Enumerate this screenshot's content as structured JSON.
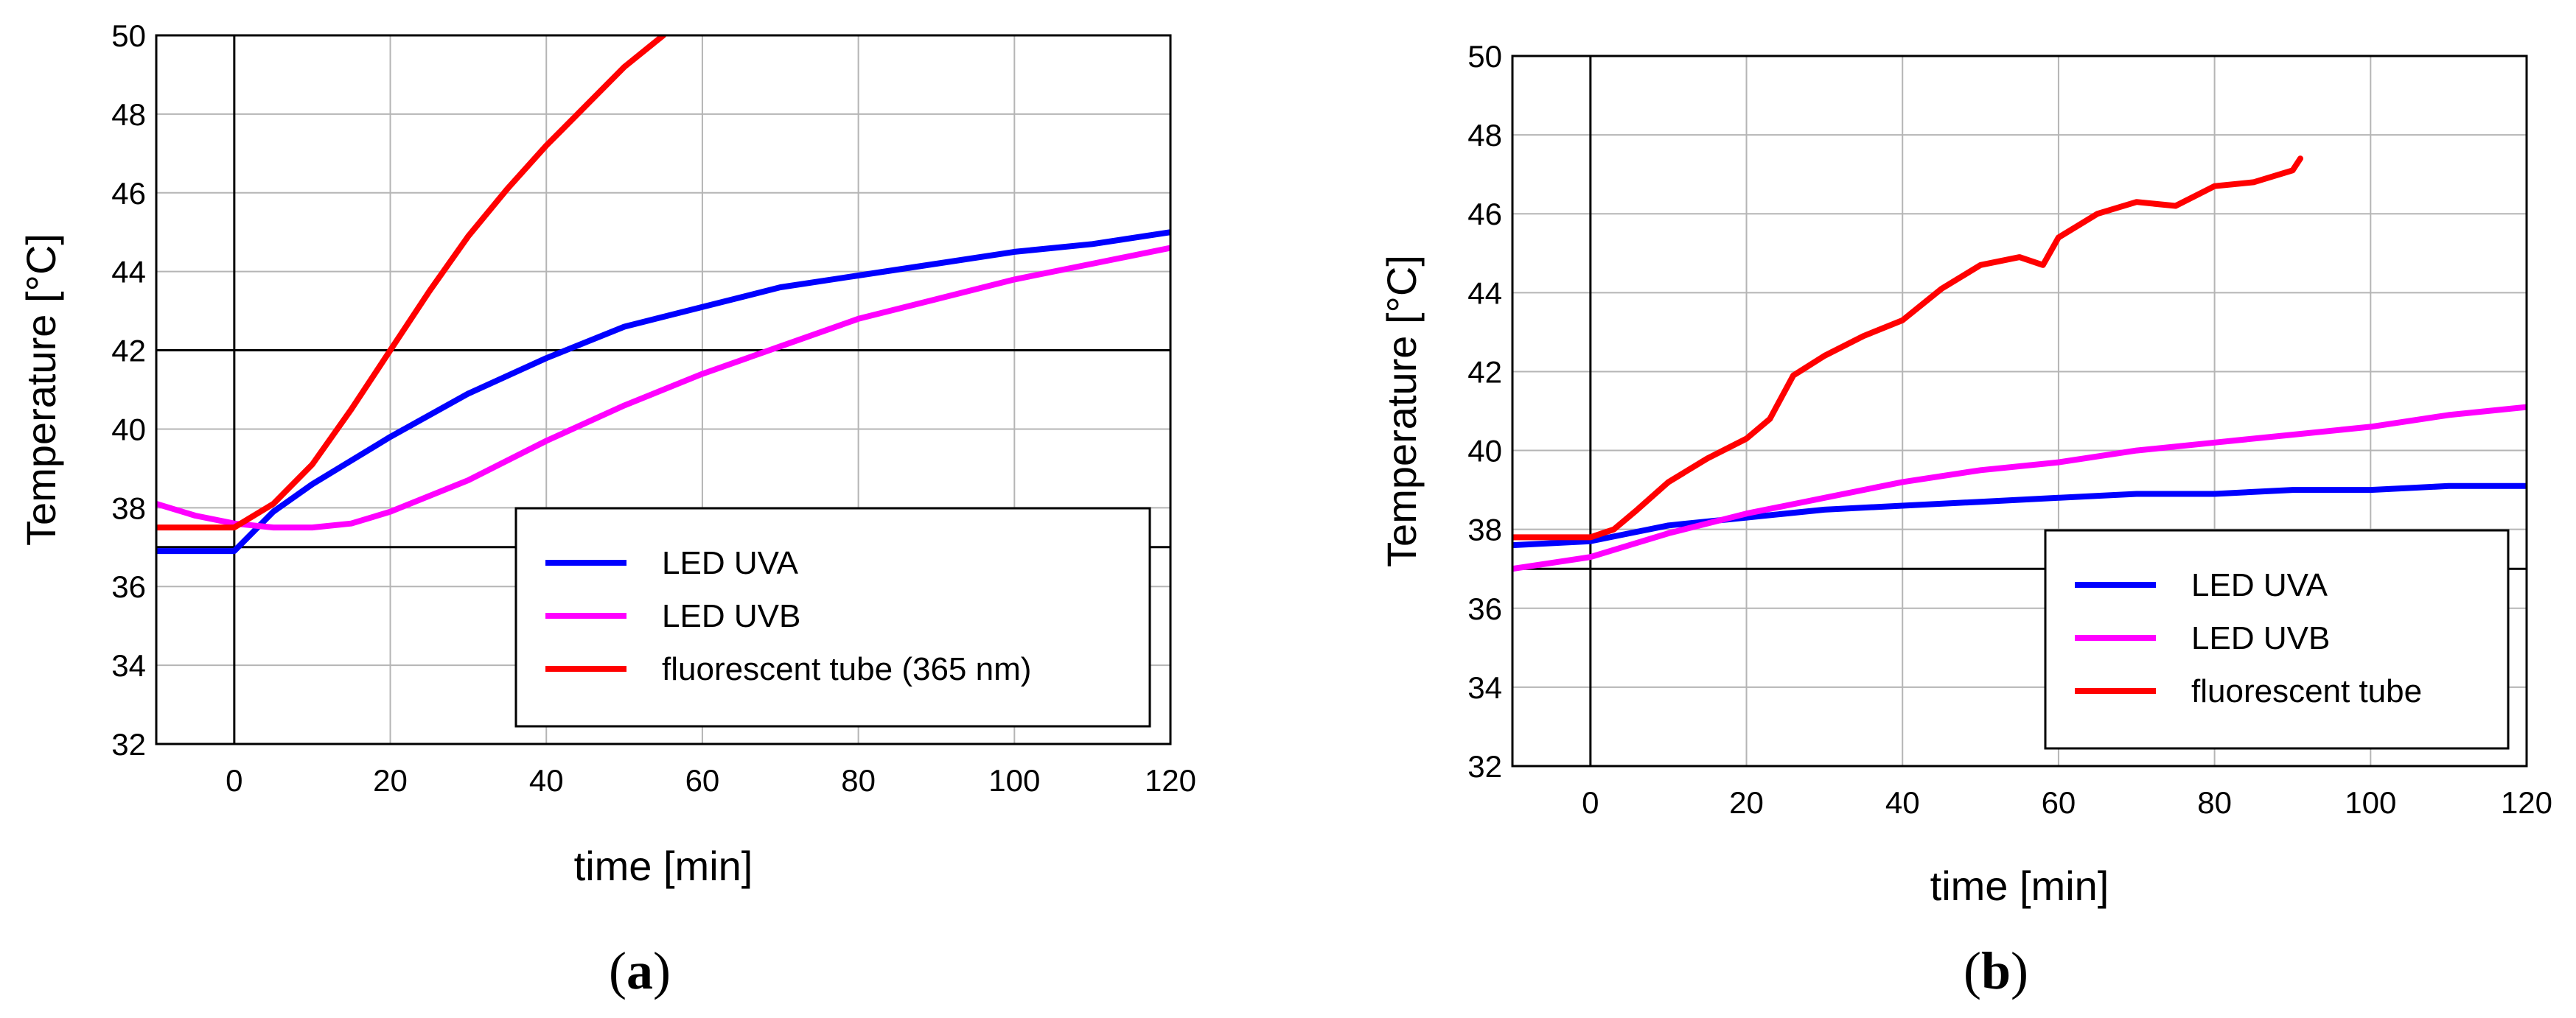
{
  "chart_data": [
    {
      "type": "line",
      "panel_label": "a",
      "xlabel": "time [min]",
      "ylabel": "Temperature [°C]",
      "xlim": [
        -10,
        120
      ],
      "ylim": [
        32,
        50
      ],
      "xticks": [
        0,
        20,
        40,
        60,
        80,
        100,
        120
      ],
      "yticks": [
        32,
        34,
        36,
        38,
        40,
        42,
        44,
        46,
        48,
        50
      ],
      "reference_lines": {
        "x": 0,
        "y": [
          37,
          42
        ]
      },
      "legend_position": "bottom-right",
      "series": [
        {
          "name": "LED UVA",
          "color": "#0000ff",
          "x": [
            -10,
            0,
            5,
            10,
            20,
            30,
            40,
            50,
            60,
            70,
            80,
            90,
            100,
            110,
            120
          ],
          "y": [
            36.9,
            36.9,
            37.9,
            38.6,
            39.8,
            40.9,
            41.8,
            42.6,
            43.1,
            43.6,
            43.9,
            44.2,
            44.5,
            44.7,
            45.0
          ]
        },
        {
          "name": "LED UVB",
          "color": "#ff00ff",
          "x": [
            -10,
            -5,
            0,
            5,
            10,
            15,
            20,
            30,
            40,
            50,
            60,
            70,
            80,
            90,
            100,
            110,
            120
          ],
          "y": [
            38.1,
            37.8,
            37.6,
            37.5,
            37.5,
            37.6,
            37.9,
            38.7,
            39.7,
            40.6,
            41.4,
            42.1,
            42.8,
            43.3,
            43.8,
            44.2,
            44.6
          ]
        },
        {
          "name": "fluorescent tube (365 nm)",
          "color": "#ff0000",
          "x": [
            -10,
            0,
            5,
            10,
            15,
            20,
            25,
            30,
            35,
            40,
            45,
            50,
            55
          ],
          "y": [
            37.5,
            37.5,
            38.1,
            39.1,
            40.5,
            42.0,
            43.5,
            44.9,
            46.1,
            47.2,
            48.2,
            49.2,
            50.0
          ]
        }
      ]
    },
    {
      "type": "line",
      "panel_label": "b",
      "xlabel": "time [min]",
      "ylabel": "Temperature [°C]",
      "xlim": [
        -10,
        120
      ],
      "ylim": [
        32,
        50
      ],
      "xticks": [
        0,
        20,
        40,
        60,
        80,
        100,
        120
      ],
      "yticks": [
        32,
        34,
        36,
        38,
        40,
        42,
        44,
        46,
        48,
        50
      ],
      "reference_lines": {
        "x": 0,
        "y": [
          37
        ]
      },
      "legend_position": "bottom-right",
      "series": [
        {
          "name": "LED UVA",
          "color": "#0000ff",
          "x": [
            -10,
            0,
            5,
            10,
            20,
            30,
            40,
            50,
            60,
            70,
            80,
            90,
            100,
            110,
            120
          ],
          "y": [
            37.6,
            37.7,
            37.9,
            38.1,
            38.3,
            38.5,
            38.6,
            38.7,
            38.8,
            38.9,
            38.9,
            39.0,
            39.0,
            39.1,
            39.1
          ]
        },
        {
          "name": "LED UVB",
          "color": "#ff00ff",
          "x": [
            -10,
            0,
            5,
            10,
            20,
            30,
            40,
            50,
            60,
            70,
            80,
            90,
            100,
            110,
            120
          ],
          "y": [
            37.0,
            37.3,
            37.6,
            37.9,
            38.4,
            38.8,
            39.2,
            39.5,
            39.7,
            40.0,
            40.2,
            40.4,
            40.6,
            40.9,
            41.1
          ]
        },
        {
          "name": "fluorescent tube",
          "color": "#ff0000",
          "x": [
            -10,
            0,
            3,
            6,
            10,
            15,
            20,
            23,
            26,
            30,
            35,
            40,
            45,
            50,
            55,
            58,
            60,
            65,
            70,
            75,
            80,
            85,
            90,
            91
          ],
          "y": [
            37.8,
            37.8,
            38.0,
            38.5,
            39.2,
            39.8,
            40.3,
            40.8,
            41.9,
            42.4,
            42.9,
            43.3,
            44.1,
            44.7,
            44.9,
            44.7,
            45.4,
            46.0,
            46.3,
            46.2,
            46.7,
            46.8,
            47.1,
            47.4
          ]
        }
      ]
    }
  ]
}
